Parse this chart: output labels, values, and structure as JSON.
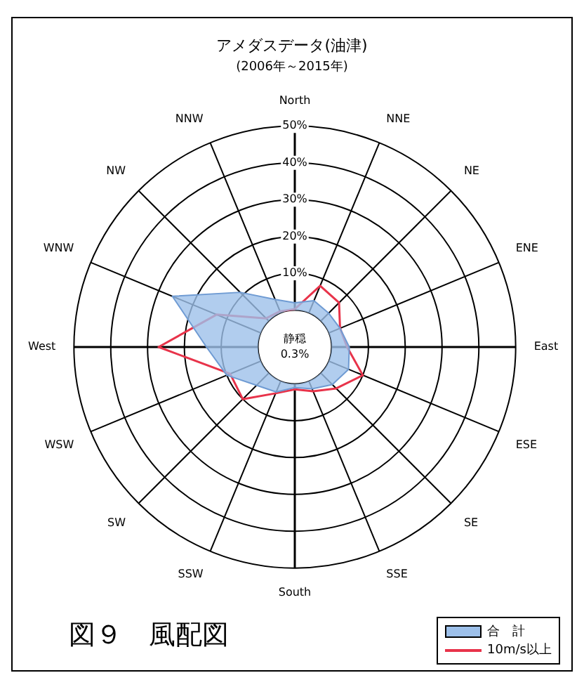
{
  "chart_data": {
    "type": "radar",
    "title": "アメダスデータ(油津)",
    "subtitle": "(2006年～2015年)",
    "categories": [
      "North",
      "NNE",
      "NE",
      "ENE",
      "East",
      "ESE",
      "SE",
      "SSE",
      "South",
      "SSW",
      "SW",
      "WSW",
      "West",
      "WNW",
      "NW",
      "NNW"
    ],
    "series": [
      {
        "name": "合　計",
        "color": "#9dc0ea",
        "values": [
          2,
          3.6,
          3,
          3.3,
          4.8,
          5.8,
          4.4,
          2.3,
          1,
          3.2,
          4.7,
          10,
          14,
          26,
          11,
          4
        ]
      },
      {
        "name": "10m/s以上",
        "color": "#e8334a",
        "values": [
          0.3,
          8,
          7,
          3.3,
          4.2,
          10,
          5.9,
          3,
          1.5,
          3.6,
          10,
          9,
          27,
          13,
          1,
          0.5
        ]
      }
    ],
    "ylim": [
      -10,
      50
    ],
    "yticks": [
      {
        "value": 10,
        "label": "10%"
      },
      {
        "value": 20,
        "label": "20%"
      },
      {
        "value": 30,
        "label": "30%"
      },
      {
        "value": 40,
        "label": "40%"
      },
      {
        "value": 50,
        "label": "50%"
      }
    ],
    "grid": true,
    "legend": "bottom right",
    "marker": "none",
    "annotations": [
      "静穏",
      "0.3%",
      "図９　風配図"
    ]
  }
}
